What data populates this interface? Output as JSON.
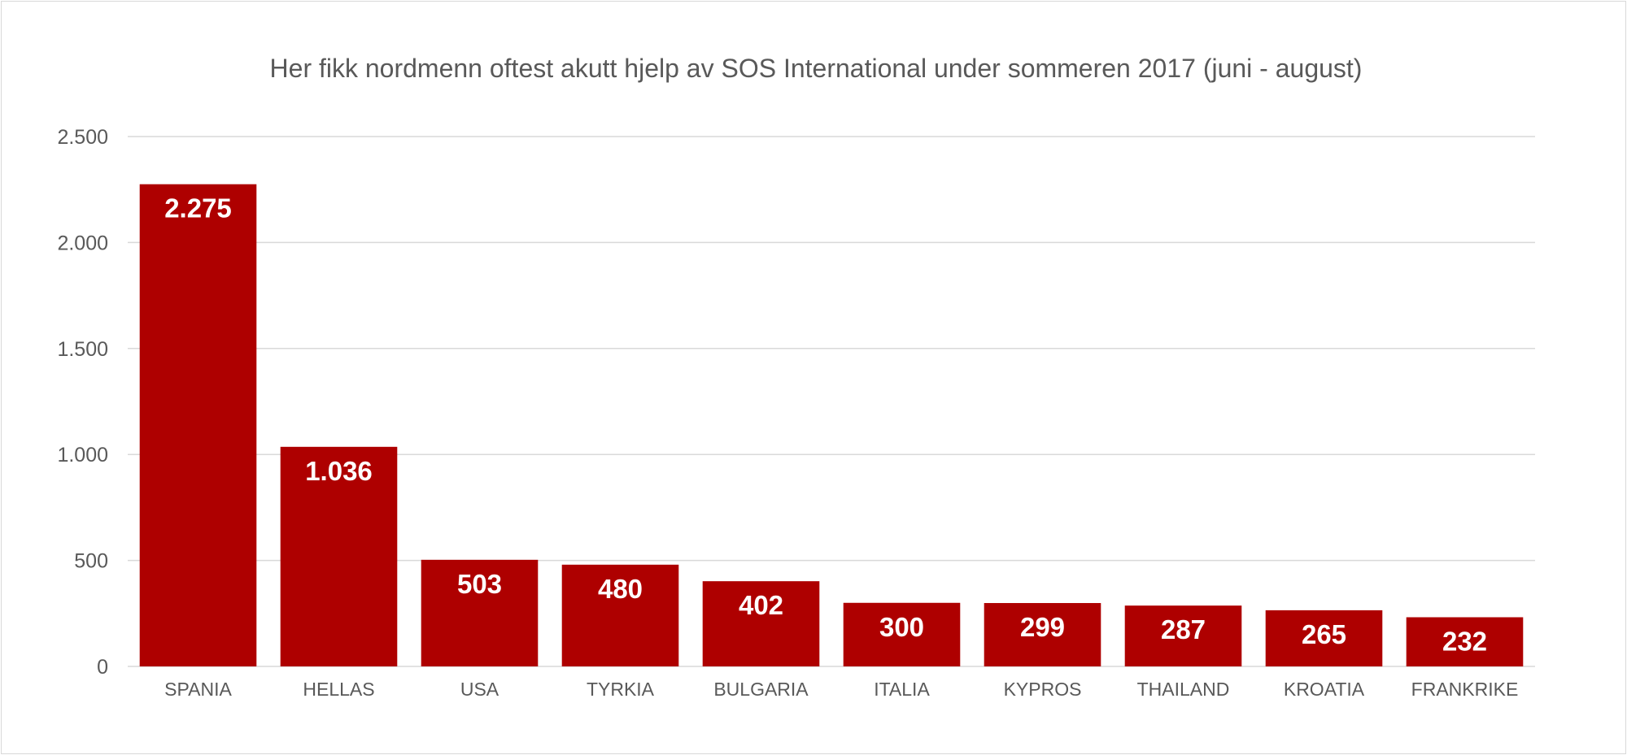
{
  "chart_data": {
    "type": "bar",
    "title": "Her fikk nordmenn oftest akutt hjelp av SOS International under sommeren 2017 (juni - august)",
    "xlabel": "",
    "ylabel": "",
    "categories": [
      "SPANIA",
      "HELLAS",
      "USA",
      "TYRKIA",
      "BULGARIA",
      "ITALIA",
      "KYPROS",
      "THAILAND",
      "KROATIA",
      "FRANKRIKE"
    ],
    "values": [
      2275,
      1036,
      503,
      480,
      402,
      300,
      299,
      287,
      265,
      232
    ],
    "data_labels": [
      "2.275",
      "1.036",
      "503",
      "480",
      "402",
      "300",
      "299",
      "287",
      "265",
      "232"
    ],
    "ylim": [
      0,
      2500
    ],
    "y_ticks": [
      0,
      500,
      1000,
      1500,
      2000,
      2500
    ],
    "y_tick_labels": [
      "0",
      "500",
      "1.000",
      "1.500",
      "2.000",
      "2.500"
    ],
    "grid": true,
    "legend": "none",
    "bar_color": "#ae0000"
  }
}
